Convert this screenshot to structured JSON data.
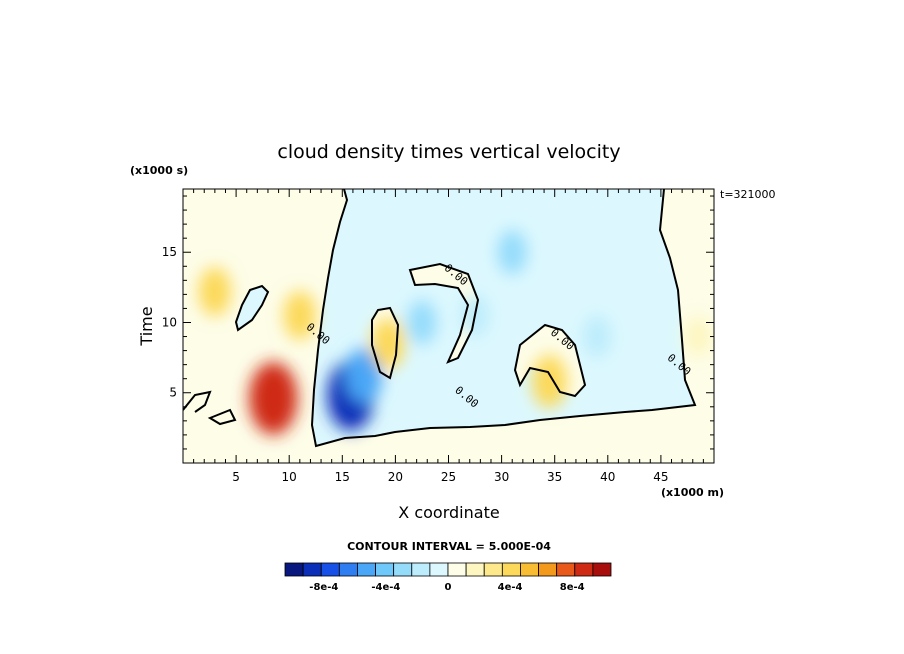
{
  "chart_data": {
    "type": "heatmap",
    "title": "cloud density times vertical velocity",
    "xlabel": "X coordinate",
    "ylabel": "Time",
    "x_scale_label": "(x1000 m)",
    "y_scale_label": "(x1000 s)",
    "annotation": "t=321000",
    "contour_interval_label": "CONTOUR INTERVAL = 5.000E-04",
    "xlim": [
      0,
      50
    ],
    "ylim": [
      0,
      19.5
    ],
    "x_ticks": [
      "5",
      "10",
      "15",
      "20",
      "25",
      "30",
      "35",
      "40",
      "45"
    ],
    "x_tick_values": [
      5,
      10,
      15,
      20,
      25,
      30,
      35,
      40,
      45
    ],
    "y_ticks": [
      "5",
      "10",
      "15"
    ],
    "y_tick_values": [
      5,
      10,
      15
    ],
    "contour_labels": [
      {
        "text": "0.00",
        "x": 12.5,
        "y": 9.0
      },
      {
        "text": "0.00",
        "x": 25.5,
        "y": 13.2
      },
      {
        "text": "0.00",
        "x": 35.5,
        "y": 8.6
      },
      {
        "text": "0.00",
        "x": 26.5,
        "y": 4.5
      },
      {
        "text": "0.00",
        "x": 46.5,
        "y": 6.8
      }
    ],
    "colorbar": {
      "labels": [
        "-8e-4",
        "-4e-4",
        "0",
        "4e-4",
        "8e-4"
      ],
      "label_values": [
        -0.0008,
        -0.0004,
        0,
        0.0004,
        0.0008
      ],
      "vmin": -0.00105,
      "vmax": 0.00105,
      "colors": [
        "#08187e",
        "#0b2fb8",
        "#1650e6",
        "#2e7ef2",
        "#4aa6f6",
        "#6ec8fa",
        "#95dcfb",
        "#bdecfc",
        "#dcf8fe",
        "#fdfde8",
        "#fdf6c0",
        "#fde98c",
        "#fcd95a",
        "#f9bd33",
        "#f39a1c",
        "#e8591a",
        "#cf2b14",
        "#a80e0c"
      ]
    },
    "features": [
      {
        "x": 3.0,
        "y": 12.2,
        "value": 0.00035
      },
      {
        "x": 11.0,
        "y": 10.5,
        "value": 0.00035
      },
      {
        "x": 8.5,
        "y": 4.6,
        "value": 0.0009
      },
      {
        "x": 15.8,
        "y": 4.8,
        "value": -0.00085
      },
      {
        "x": 17.0,
        "y": 6.2,
        "value": -0.0005
      },
      {
        "x": 19.3,
        "y": 8.5,
        "value": 0.0004
      },
      {
        "x": 22.5,
        "y": 10.0,
        "value": -0.00025
      },
      {
        "x": 27.5,
        "y": 10.5,
        "value": -0.0002
      },
      {
        "x": 31.0,
        "y": 15.0,
        "value": -0.00025
      },
      {
        "x": 34.5,
        "y": 5.8,
        "value": 0.00045
      },
      {
        "x": 39.0,
        "y": 9.0,
        "value": -0.0002
      },
      {
        "x": 48.5,
        "y": 9.0,
        "value": 0.00015
      }
    ]
  }
}
